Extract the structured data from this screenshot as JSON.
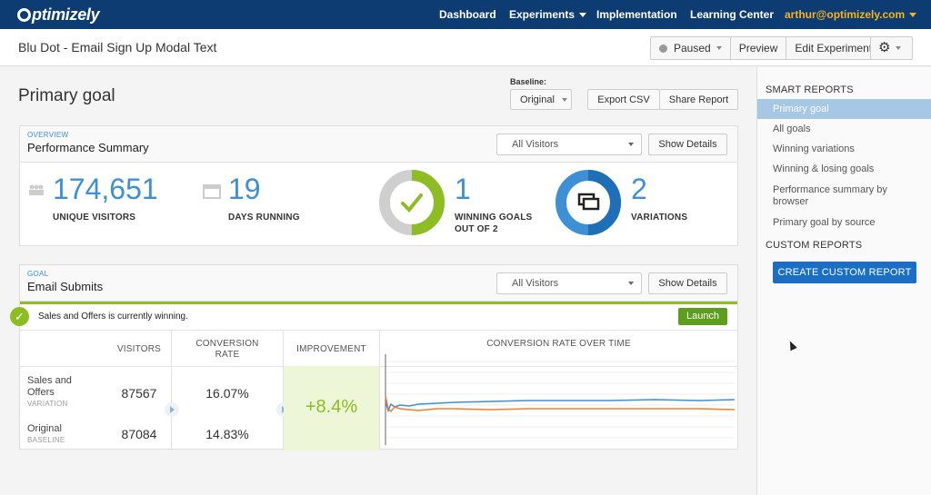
{
  "nav": {
    "logo": "ptimizely",
    "items": [
      "Dashboard",
      "Experiments",
      "Implementation",
      "Learning Center"
    ],
    "user": "arthur@optimizely.com"
  },
  "experiment": {
    "title": "Blu Dot - Email Sign Up Modal Text",
    "status": "Paused",
    "preview": "Preview",
    "edit": "Edit Experiment"
  },
  "main": {
    "title": "Primary goal",
    "baseline_label": "Baseline:",
    "baseline_value": "Original",
    "export": "Export CSV",
    "share": "Share Report"
  },
  "overview": {
    "eyebrow": "OVERVIEW",
    "title": "Performance Summary",
    "segment": "All Visitors",
    "details": "Show Details",
    "unique_visitors": "174,651",
    "unique_visitors_label": "UNIQUE VISITORS",
    "days_running": "19",
    "days_running_label": "DAYS RUNNING",
    "winning_goals": "1",
    "winning_goals_label1": "WINNING GOALS",
    "winning_goals_label2": "OUT OF 2",
    "winning_goals_fraction": 0.5,
    "variations": "2",
    "variations_label": "VARIATIONS",
    "colors": {
      "accent": "#3d8fd6",
      "green": "#8dbd22",
      "dark": "#0d3c73"
    }
  },
  "goal": {
    "eyebrow": "GOAL",
    "title": "Email Submits",
    "segment": "All Visitors",
    "details": "Show Details",
    "winning_text": "Sales and Offers is currently winning.",
    "launch": "Launch",
    "headers": {
      "visitors": "VISITORS",
      "conversion1": "CONVERSION",
      "conversion2": "RATE",
      "improvement": "IMPROVEMENT",
      "chart": "CONVERSION RATE OVER TIME"
    },
    "rows": [
      {
        "name1": "Sales and",
        "name2": "Offers",
        "sub": "VARIATION",
        "visitors": "87567",
        "rate": "16.07%"
      },
      {
        "name1": "Original",
        "name2": "",
        "sub": "BASELINE",
        "visitors": "87084",
        "rate": "14.83%"
      }
    ],
    "improvement": "+8.4%"
  },
  "sidebar": {
    "smart_heading": "SMART REPORTS",
    "smart_items": [
      "Primary goal",
      "All goals",
      "Winning variations",
      "Winning & losing goals",
      "Performance summary by browser",
      "Primary goal by source"
    ],
    "custom_heading": "CUSTOM REPORTS",
    "create_button": "CREATE CUSTOM REPORT"
  }
}
